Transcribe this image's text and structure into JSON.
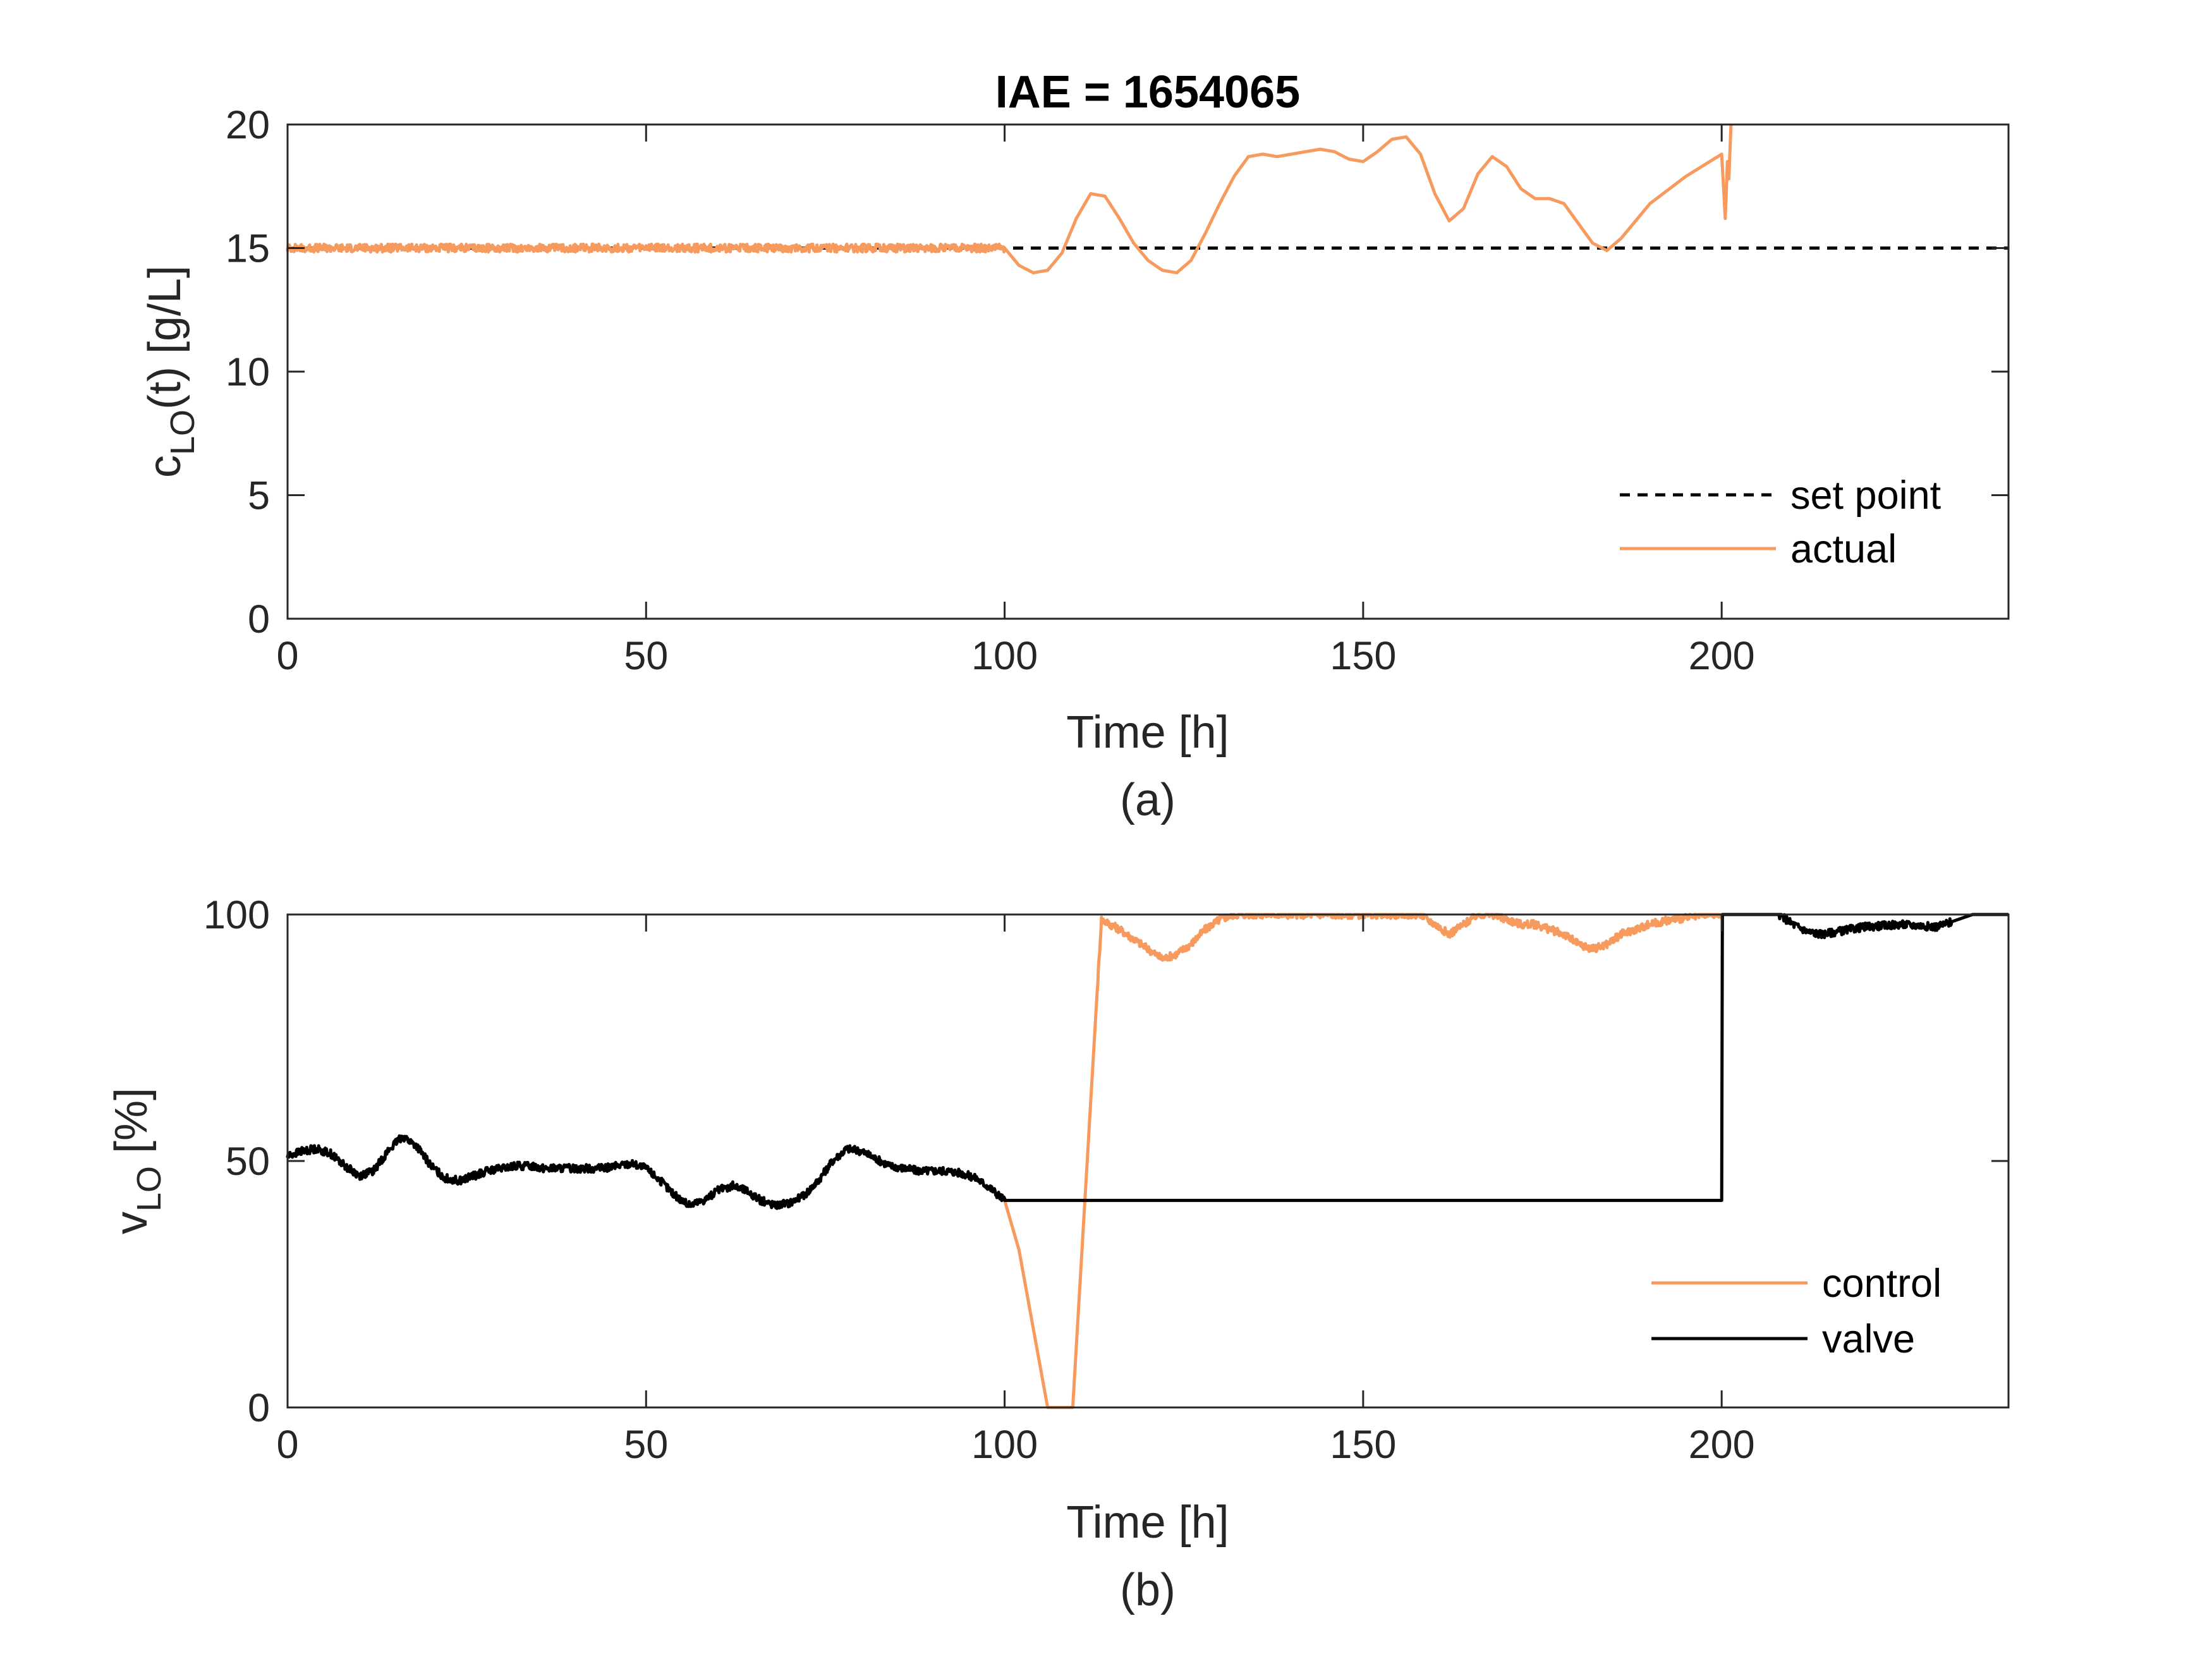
{
  "chart_data": [
    {
      "id": "panel-a",
      "type": "line",
      "title": "IAE = 1654065",
      "xlabel": "Time [h]",
      "ylabel": "c",
      "ylabel_sub": "LO",
      "ylabel_rest": "(t) [g/L]",
      "caption": "(a)",
      "xlim": [
        0,
        240
      ],
      "ylim": [
        0,
        20
      ],
      "xticks": [
        0,
        50,
        100,
        150,
        200
      ],
      "yticks": [
        0,
        5,
        10,
        15,
        20
      ],
      "grid": false,
      "legend_position": "bottom-right",
      "series": [
        {
          "name": "set point",
          "color": "#000000",
          "style": "dashed",
          "x": [
            0,
            240
          ],
          "y": [
            15,
            15
          ]
        },
        {
          "name": "actual",
          "color": "#F79A5E",
          "style": "solid",
          "noise_until_x": 100,
          "x": [
            0,
            20,
            40,
            60,
            80,
            100,
            102,
            104,
            106,
            108,
            110,
            112,
            114,
            116,
            118,
            120,
            122,
            124,
            126,
            128,
            130,
            132,
            134,
            136,
            138,
            140,
            142,
            144,
            146,
            148,
            150,
            152,
            154,
            156,
            158,
            160,
            162,
            164,
            166,
            168,
            170,
            172,
            174,
            176,
            178,
            180,
            182,
            184,
            186,
            190,
            195,
            200,
            200.5,
            200.8,
            201,
            201.3
          ],
          "y": [
            15,
            15,
            15,
            15,
            15,
            15,
            14.3,
            14,
            14.1,
            14.8,
            16.2,
            17.2,
            17.1,
            16.2,
            15.2,
            14.5,
            14.1,
            14.0,
            14.5,
            15.6,
            16.8,
            17.9,
            18.7,
            18.8,
            18.7,
            18.8,
            18.9,
            19.0,
            18.9,
            18.6,
            18.5,
            18.9,
            19.4,
            19.5,
            18.8,
            17.2,
            16.1,
            16.6,
            18.0,
            18.7,
            18.3,
            17.4,
            17.0,
            17.0,
            16.8,
            16.0,
            15.2,
            14.9,
            15.4,
            16.8,
            17.9,
            18.8,
            16.2,
            18.5,
            17.8,
            20.0
          ]
        }
      ]
    },
    {
      "id": "panel-b",
      "type": "line",
      "title": "",
      "xlabel": "Time [h]",
      "ylabel": "v",
      "ylabel_sub": "LO",
      "ylabel_rest": " [%]",
      "caption": "(b)",
      "xlim": [
        0,
        240
      ],
      "ylim": [
        0,
        100
      ],
      "xticks": [
        0,
        50,
        100,
        150,
        200
      ],
      "yticks": [
        0,
        50,
        100
      ],
      "grid": false,
      "legend_position": "bottom-right",
      "series": [
        {
          "name": "control",
          "color": "#F79A5E",
          "style": "solid",
          "noise_from_x": 113,
          "noise_until_x": 200,
          "x": [
            100,
            102,
            105,
            106,
            108,
            109.5,
            113.5,
            116,
            118,
            120,
            122,
            124,
            126,
            128,
            130,
            132,
            135,
            140,
            150,
            158,
            160,
            162,
            164,
            166,
            168,
            170,
            172,
            174,
            176,
            178,
            180,
            182,
            184,
            186,
            188,
            190,
            193,
            196,
            198,
            200
          ],
          "y": [
            42,
            32,
            8,
            0,
            0,
            0,
            99,
            97,
            95,
            93,
            91,
            92,
            94,
            97,
            99,
            100,
            100,
            100,
            100,
            100,
            98,
            96,
            98,
            100,
            100,
            99,
            98,
            98,
            97,
            96,
            94,
            93,
            94,
            96,
            97,
            98,
            99,
            99.5,
            100,
            100
          ]
        },
        {
          "name": "valve",
          "color": "#000000",
          "style": "solid",
          "noise_until_x": 100,
          "noise2_from_x": 208,
          "noise2_until_x": 232,
          "x": [
            0,
            2,
            4,
            6,
            8,
            10,
            12,
            14,
            16,
            18,
            20,
            22,
            24,
            26,
            28,
            30,
            32,
            34,
            36,
            38,
            40,
            42,
            44,
            46,
            48,
            50,
            52,
            54,
            56,
            58,
            60,
            62,
            64,
            66,
            68,
            70,
            72,
            74,
            76,
            78,
            80,
            82,
            84,
            86,
            88,
            90,
            92,
            94,
            96,
            98,
            100,
            200,
            200.1,
            205,
            208,
            210,
            212,
            214,
            216,
            220,
            225,
            230,
            232,
            235,
            240
          ],
          "y": [
            51,
            52,
            52.5,
            51.5,
            49,
            47,
            48,
            52,
            55,
            53,
            49,
            46.5,
            46,
            47,
            48,
            48.5,
            49,
            49,
            48.5,
            48.5,
            48.5,
            48.5,
            48.5,
            49,
            49.5,
            48.5,
            46,
            43,
            41,
            42,
            44,
            45,
            44,
            42,
            41,
            41.5,
            43,
            46,
            50,
            52.5,
            52,
            50.5,
            49,
            48.5,
            48,
            48,
            48,
            47.5,
            46.5,
            44.5,
            42,
            42,
            100,
            100,
            100,
            98,
            96.5,
            96,
            96.5,
            97.5,
            98,
            97.5,
            98.5,
            100,
            100
          ]
        }
      ]
    }
  ]
}
